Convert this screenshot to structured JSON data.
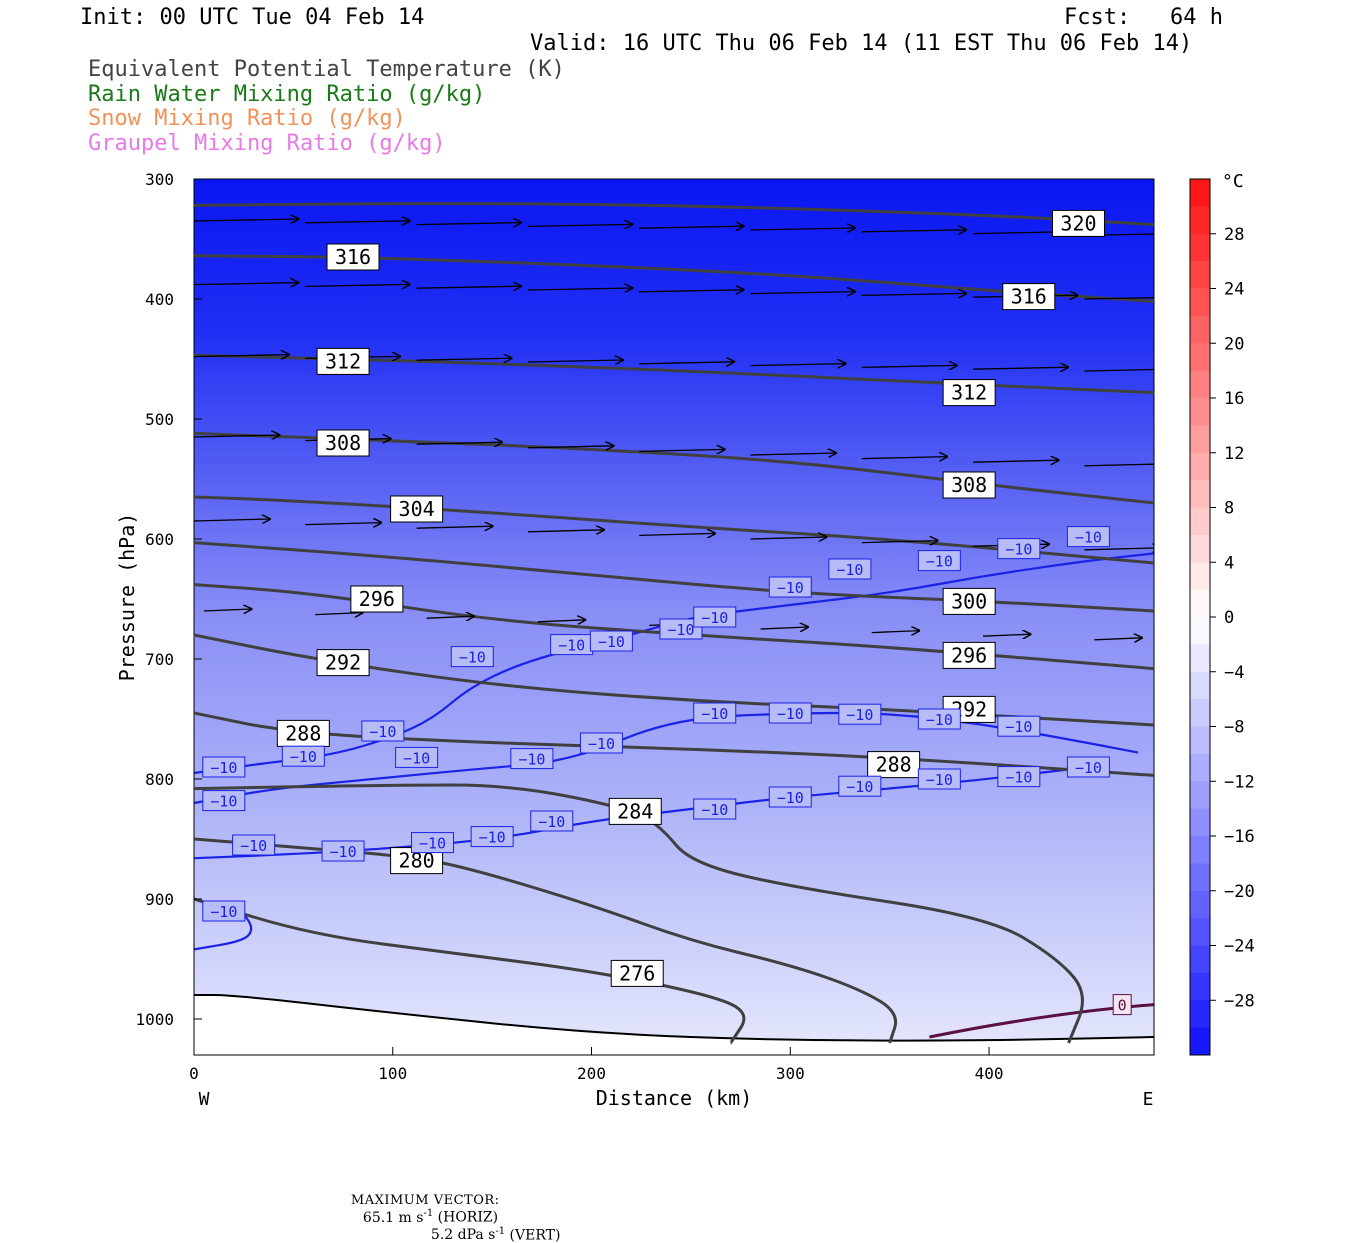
{
  "header": {
    "init": "Init: 00 UTC Tue 04 Feb 14",
    "fcst": "Fcst:   64 h",
    "valid": "Valid: 16 UTC Thu 06 Feb 14 (11 EST Thu 06 Feb 14)"
  },
  "legend": [
    {
      "label": "Equivalent Potential Temperature (K)",
      "color": "#444444"
    },
    {
      "label": "Rain Water Mixing Ratio (g/kg)",
      "color": "#1a7a1a"
    },
    {
      "label": "Snow Mixing Ratio (g/kg)",
      "color": "#f0935a"
    },
    {
      "label": "Graupel Mixing Ratio (g/kg)",
      "color": "#e87ae8"
    }
  ],
  "chart_data": {
    "type": "cross-section",
    "xlabel": "Distance (km)",
    "ylabel": "Pressure (hPa)",
    "xlim": [
      0,
      483
    ],
    "ylim": [
      1030,
      300
    ],
    "x_ticks": [
      0,
      100,
      200,
      300,
      400
    ],
    "y_ticks": [
      300,
      400,
      500,
      600,
      700,
      800,
      900,
      1000
    ],
    "x_end_labels": {
      "left": "W",
      "right": "E"
    },
    "colorbar": {
      "unit": "°C",
      "tick_labels": [
        "28",
        "24",
        "20",
        "16",
        "12",
        "8",
        "4",
        "0",
        "-4",
        "-8",
        "-12",
        "-16",
        "-20",
        "-24",
        "-28"
      ],
      "range": [
        -32,
        32
      ],
      "bin_width": 2
    },
    "theta_e_contours": [
      {
        "label": "320",
        "points": [
          [
            0,
            322
          ],
          [
            120,
            320
          ],
          [
            250,
            322
          ],
          [
            400,
            330
          ],
          [
            483,
            338
          ]
        ],
        "label_at": [
          445,
          337
        ]
      },
      {
        "label": "316",
        "points": [
          [
            0,
            364
          ],
          [
            80,
            365
          ],
          [
            200,
            372
          ],
          [
            300,
            380
          ],
          [
            400,
            393
          ],
          [
            483,
            402
          ]
        ],
        "label_at": [
          80,
          365
        ]
      },
      {
        "label": "316",
        "points": [],
        "label_at": [
          420,
          398
        ]
      },
      {
        "label": "312",
        "points": [
          [
            0,
            447
          ],
          [
            120,
            452
          ],
          [
            250,
            460
          ],
          [
            400,
            472
          ],
          [
            483,
            478
          ]
        ],
        "label_at": [
          75,
          452
        ]
      },
      {
        "label": "312",
        "points": [],
        "label_at": [
          390,
          478
        ]
      },
      {
        "label": "308",
        "points": [
          [
            0,
            512
          ],
          [
            100,
            518
          ],
          [
            200,
            525
          ],
          [
            300,
            535
          ],
          [
            400,
            555
          ],
          [
            483,
            570
          ]
        ],
        "label_at": [
          75,
          520
        ]
      },
      {
        "label": "308",
        "points": [],
        "label_at": [
          390,
          555
        ]
      },
      {
        "label": "304",
        "points": [
          [
            0,
            565
          ],
          [
            50,
            568
          ],
          [
            150,
            578
          ],
          [
            250,
            590
          ],
          [
            350,
            600
          ],
          [
            483,
            620
          ]
        ],
        "label_at": [
          112,
          575
        ]
      },
      {
        "label": "300",
        "points": [
          [
            0,
            603
          ],
          [
            100,
            615
          ],
          [
            200,
            630
          ],
          [
            300,
            645
          ],
          [
            400,
            652
          ],
          [
            483,
            660
          ]
        ],
        "label_at": [
          390,
          652
        ]
      },
      {
        "label": "296",
        "points": [
          [
            0,
            638
          ],
          [
            60,
            645
          ],
          [
            150,
            668
          ],
          [
            250,
            680
          ],
          [
            350,
            690
          ],
          [
            483,
            708
          ]
        ],
        "label_at": [
          92,
          650
        ]
      },
      {
        "label": "296",
        "points": [],
        "label_at": [
          390,
          697
        ]
      },
      {
        "label": "292",
        "points": [
          [
            0,
            680
          ],
          [
            60,
            700
          ],
          [
            150,
            722
          ],
          [
            250,
            735
          ],
          [
            350,
            742
          ],
          [
            483,
            755
          ]
        ],
        "label_at": [
          75,
          703
        ]
      },
      {
        "label": "292",
        "points": [],
        "label_at": [
          390,
          742
        ]
      },
      {
        "label": "288",
        "points": [
          [
            0,
            745
          ],
          [
            50,
            762
          ],
          [
            150,
            770
          ],
          [
            250,
            775
          ],
          [
            350,
            782
          ],
          [
            483,
            797
          ]
        ],
        "label_at": [
          55,
          762
        ]
      },
      {
        "label": "288",
        "points": [],
        "label_at": [
          352,
          788
        ]
      },
      {
        "label": "284",
        "points": [
          [
            0,
            808
          ],
          [
            100,
            805
          ],
          [
            160,
            805
          ],
          [
            220,
            825
          ],
          [
            235,
            840
          ],
          [
            250,
            870
          ],
          [
            300,
            890
          ],
          [
            400,
            915
          ],
          [
            435,
            950
          ],
          [
            450,
            980
          ],
          [
            440,
            1020
          ]
        ],
        "label_at": [
          222,
          827
        ]
      },
      {
        "label": "280",
        "points": [
          [
            0,
            850
          ],
          [
            60,
            858
          ],
          [
            110,
            865
          ],
          [
            140,
            875
          ],
          [
            200,
            905
          ],
          [
            250,
            935
          ],
          [
            300,
            955
          ],
          [
            335,
            975
          ],
          [
            355,
            995
          ],
          [
            350,
            1020
          ]
        ],
        "label_at": [
          112,
          868
        ]
      },
      {
        "label": "276",
        "points": [
          [
            0,
            900
          ],
          [
            60,
            930
          ],
          [
            130,
            945
          ],
          [
            200,
            960
          ],
          [
            260,
            980
          ],
          [
            280,
            995
          ],
          [
            270,
            1020
          ]
        ],
        "label_at": [
          223,
          962
        ]
      }
    ],
    "isotherm_minus10_labels": [
      "-10"
    ],
    "isotherm_0_label": "0"
  },
  "footer": {
    "max_vector_label": "MAXIMUM VECTOR:",
    "horiz_value": "65.1 m s",
    "horiz_exp": "-1",
    "horiz_unit": " (HORIZ)",
    "vert_value": "5.2 dPa s",
    "vert_exp": "-1",
    "vert_unit": " (VERT)"
  }
}
